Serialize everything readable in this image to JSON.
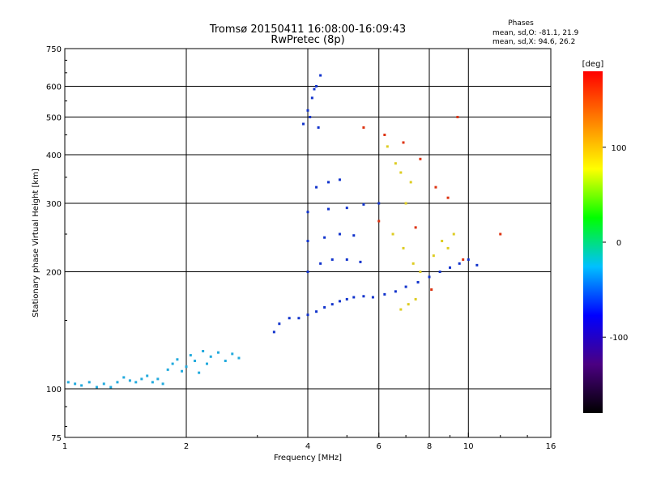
{
  "chart_data": {
    "type": "scatter",
    "title": "Tromsø 20150411 16:08:00-16:09:43",
    "subtitle": "RwPretec (8p)",
    "xlabel": "Frequency [MHz]",
    "ylabel": "Stationary phase Virtual Height [km]",
    "x_scale": "log",
    "y_scale": "log",
    "xlim": [
      1,
      16
    ],
    "ylim": [
      75,
      750
    ],
    "x_ticks": [
      1,
      2,
      4,
      6,
      8,
      10,
      16
    ],
    "x_tick_labels": [
      "1",
      "2",
      "4",
      "6",
      "8",
      "10",
      "16"
    ],
    "y_ticks": [
      75,
      100,
      200,
      300,
      400,
      500,
      600,
      750
    ],
    "y_tick_labels": [
      "75",
      "100",
      "200",
      "300",
      "400",
      "500",
      "600",
      "750"
    ],
    "x_gridlines": [
      2,
      4,
      6,
      8,
      10
    ],
    "y_gridlines": [
      100,
      200,
      300,
      400,
      500,
      600
    ],
    "grid": true,
    "legend_block": {
      "heading": "Phases",
      "line1": "mean, sd,O: -81.1, 21.9",
      "line2": "mean, sd,X:  94.6, 26.2"
    },
    "colorbar": {
      "label": "[deg]",
      "placement": "right",
      "range": [
        -180,
        180
      ],
      "ticks": [
        100,
        0,
        -100
      ],
      "tick_labels": [
        "100",
        "0",
        "-100"
      ],
      "colors": [
        "#000000",
        "#4b0082",
        "#0000ff",
        "#00c0ff",
        "#00ff00",
        "#ffff00",
        "#ff8000",
        "#ff0000"
      ]
    },
    "clusters": [
      {
        "name": "low-cyan",
        "color": "#22aadd",
        "points": [
          [
            1.02,
            104
          ],
          [
            1.06,
            103
          ],
          [
            1.1,
            102
          ],
          [
            1.15,
            104
          ],
          [
            1.2,
            101
          ],
          [
            1.25,
            103
          ],
          [
            1.3,
            101
          ],
          [
            1.35,
            104
          ],
          [
            1.4,
            107
          ],
          [
            1.45,
            105
          ],
          [
            1.5,
            104
          ],
          [
            1.55,
            106
          ],
          [
            1.6,
            108
          ],
          [
            1.65,
            104
          ],
          [
            1.7,
            106
          ],
          [
            1.75,
            103
          ],
          [
            1.8,
            112
          ],
          [
            1.85,
            116
          ],
          [
            1.9,
            119
          ],
          [
            1.95,
            111
          ],
          [
            2.0,
            114
          ],
          [
            2.05,
            122
          ],
          [
            2.1,
            118
          ],
          [
            2.15,
            110
          ],
          [
            2.2,
            125
          ],
          [
            2.25,
            116
          ],
          [
            2.3,
            121
          ],
          [
            2.4,
            124
          ],
          [
            2.5,
            118
          ],
          [
            2.6,
            123
          ],
          [
            2.7,
            120
          ]
        ]
      },
      {
        "name": "blue-dense",
        "color": "#1133cc",
        "points": [
          [
            3.3,
            140
          ],
          [
            3.4,
            147
          ],
          [
            3.6,
            152
          ],
          [
            3.8,
            152
          ],
          [
            4.0,
            155
          ],
          [
            4.2,
            158
          ],
          [
            4.4,
            162
          ],
          [
            4.6,
            165
          ],
          [
            4.8,
            168
          ],
          [
            5.0,
            170
          ],
          [
            5.2,
            172
          ],
          [
            5.5,
            173
          ],
          [
            5.8,
            172
          ],
          [
            6.2,
            175
          ],
          [
            6.6,
            178
          ],
          [
            7.0,
            183
          ],
          [
            7.5,
            188
          ],
          [
            8.0,
            194
          ],
          [
            8.5,
            200
          ],
          [
            9.0,
            205
          ],
          [
            9.5,
            210
          ],
          [
            10.0,
            215
          ],
          [
            10.5,
            208
          ],
          [
            4.0,
            200
          ],
          [
            4.3,
            210
          ],
          [
            4.6,
            215
          ],
          [
            5.0,
            215
          ],
          [
            5.4,
            212
          ],
          [
            4.0,
            240
          ],
          [
            4.4,
            245
          ],
          [
            4.8,
            250
          ],
          [
            5.2,
            248
          ],
          [
            4.0,
            285
          ],
          [
            4.5,
            290
          ],
          [
            5.0,
            292
          ],
          [
            5.5,
            298
          ],
          [
            6.0,
            300
          ],
          [
            4.2,
            330
          ],
          [
            4.5,
            340
          ],
          [
            4.8,
            345
          ],
          [
            3.9,
            480
          ],
          [
            4.0,
            520
          ],
          [
            4.1,
            560
          ],
          [
            4.2,
            600
          ],
          [
            4.3,
            640
          ],
          [
            4.05,
            500
          ],
          [
            4.15,
            590
          ],
          [
            4.25,
            470
          ]
        ]
      },
      {
        "name": "mixed-phase",
        "color": "#ddcc22",
        "points": [
          [
            6.3,
            420
          ],
          [
            6.6,
            380
          ],
          [
            6.8,
            360
          ],
          [
            7.0,
            300
          ],
          [
            7.2,
            340
          ],
          [
            6.5,
            250
          ],
          [
            6.9,
            230
          ],
          [
            7.3,
            210
          ],
          [
            7.6,
            200
          ],
          [
            8.2,
            220
          ],
          [
            8.6,
            240
          ],
          [
            8.9,
            230
          ],
          [
            9.2,
            250
          ],
          [
            6.8,
            160
          ],
          [
            7.1,
            165
          ],
          [
            7.4,
            170
          ]
        ]
      },
      {
        "name": "high-red",
        "color": "#dd3311",
        "points": [
          [
            5.5,
            470
          ],
          [
            6.2,
            450
          ],
          [
            6.9,
            430
          ],
          [
            7.6,
            390
          ],
          [
            8.3,
            330
          ],
          [
            8.9,
            310
          ],
          [
            9.4,
            500
          ],
          [
            6.0,
            270
          ],
          [
            7.4,
            260
          ],
          [
            8.1,
            180
          ],
          [
            9.7,
            215
          ],
          [
            12.0,
            250
          ]
        ]
      }
    ]
  }
}
